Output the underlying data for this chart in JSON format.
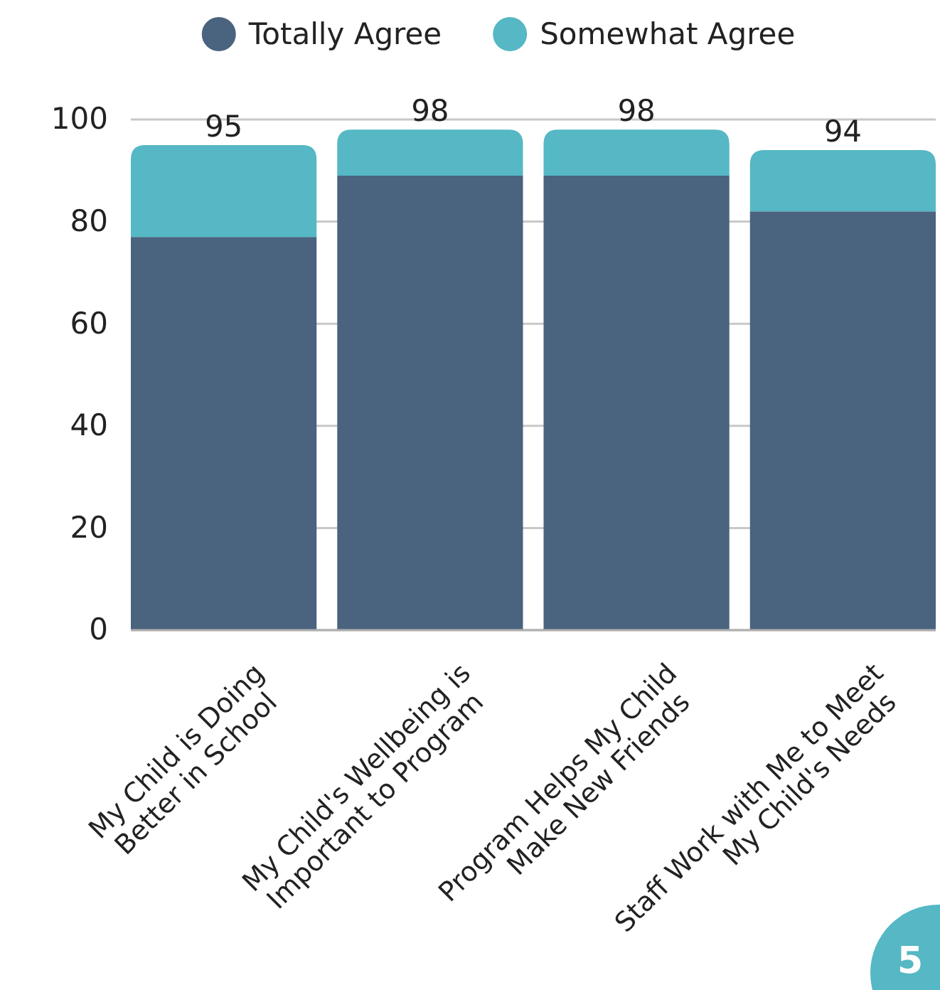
{
  "chart_data": {
    "type": "bar",
    "stacked": true,
    "categories": [
      "My Child is Doing\nBetter in School",
      "My Child's Wellbeing is\nImportant to Program",
      "Program Helps My Child\nMake New Friends",
      "Staff Work with Me to Meet\nMy Child's Needs"
    ],
    "series": [
      {
        "name": "Totally Agree",
        "color": "#4a637e",
        "values": [
          77,
          89,
          89,
          82
        ]
      },
      {
        "name": "Somewhat Agree",
        "color": "#55b8c4",
        "values": [
          18,
          9,
          9,
          12
        ]
      }
    ],
    "totals": [
      "95",
      "98",
      "98",
      "94"
    ],
    "ylim": [
      0,
      100
    ],
    "yticks": [
      0,
      20,
      40,
      60,
      80,
      100
    ],
    "grid": "y",
    "legend": "top",
    "annotations": [
      "5"
    ]
  }
}
